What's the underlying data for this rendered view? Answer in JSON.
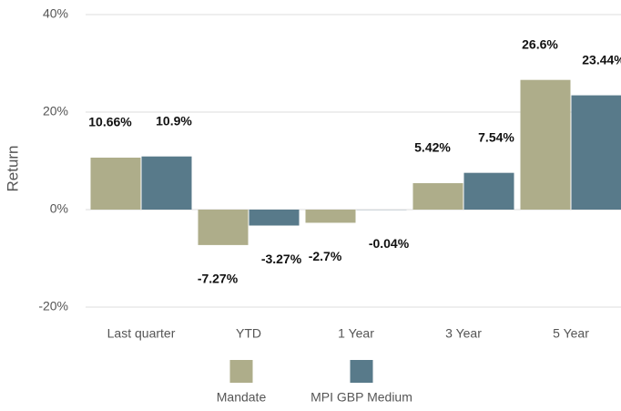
{
  "chart_data": {
    "type": "bar",
    "y_label": "Return",
    "categories": [
      "Last quarter",
      "YTD",
      "1 Year",
      "3 Year",
      "5 Year"
    ],
    "series": [
      {
        "name": "Mandate",
        "color": "#aead8a",
        "values": [
          10.66,
          -7.27,
          -2.7,
          5.42,
          26.6
        ],
        "value_labels": [
          "10.66%",
          "-7.27%",
          "-2.7%",
          "5.42%",
          "26.6%"
        ]
      },
      {
        "name": "MPI GBP Medium",
        "color": "#587a8a",
        "values": [
          10.9,
          -3.27,
          -0.04,
          7.54,
          23.44
        ],
        "value_labels": [
          "10.9%",
          "-3.27%",
          "-0.04%",
          "7.54%",
          "23.44%"
        ]
      }
    ],
    "ylim": [
      -20,
      40
    ],
    "yticks": [
      {
        "value": -20,
        "label": "-20%"
      },
      {
        "value": 0,
        "label": "0%"
      },
      {
        "value": 20,
        "label": "20%"
      },
      {
        "value": 40,
        "label": "40%"
      }
    ],
    "grid": true
  }
}
